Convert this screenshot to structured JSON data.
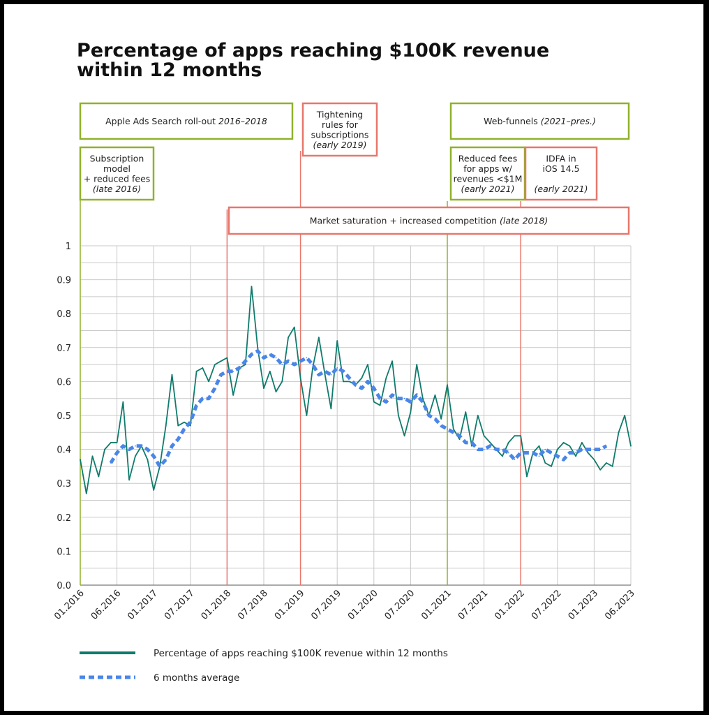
{
  "chart_data": {
    "type": "line",
    "title_line1": "Percentage of apps reaching $100K revenue",
    "title_line2": "within 12 months",
    "xlabel": "",
    "ylabel": "",
    "ylim": [
      0,
      1
    ],
    "y_ticks": [
      "0.0",
      "0.1",
      "0.2",
      "0.3",
      "0.4",
      "0.5",
      "0.6",
      "0.7",
      "0.8",
      "0.9",
      "1"
    ],
    "x_ticks": [
      "01.2016",
      "06.2016",
      "01.2017",
      "07.2017",
      "01.2018",
      "07.2018",
      "01.2019",
      "07.2019",
      "01.2020",
      "07.2020",
      "01.2021",
      "07.2021",
      "01.2022",
      "07.2022",
      "01.2023",
      "06.2023"
    ],
    "grid": true,
    "legend_position": "bottom",
    "series": [
      {
        "name": "Percentage of apps reaching $100K revenue within 12 months",
        "color": "#0f7b6c",
        "style": "solid",
        "values": [
          0.37,
          0.27,
          0.38,
          0.32,
          0.4,
          0.42,
          0.42,
          0.54,
          0.31,
          0.38,
          0.41,
          0.37,
          0.28,
          0.35,
          0.47,
          0.62,
          0.47,
          0.48,
          0.47,
          0.63,
          0.64,
          0.6,
          0.65,
          0.66,
          0.67,
          0.56,
          0.64,
          0.65,
          0.88,
          0.7,
          0.58,
          0.63,
          0.57,
          0.6,
          0.73,
          0.76,
          0.61,
          0.5,
          0.64,
          0.73,
          0.62,
          0.52,
          0.72,
          0.6,
          0.6,
          0.59,
          0.61,
          0.65,
          0.54,
          0.53,
          0.61,
          0.66,
          0.5,
          0.44,
          0.51,
          0.65,
          0.55,
          0.5,
          0.56,
          0.49,
          0.59,
          0.46,
          0.43,
          0.51,
          0.41,
          0.5,
          0.44,
          0.42,
          0.4,
          0.38,
          0.42,
          0.44,
          0.44,
          0.32,
          0.39,
          0.41,
          0.36,
          0.35,
          0.4,
          0.42,
          0.41,
          0.38,
          0.42,
          0.39,
          0.37,
          0.34,
          0.36,
          0.35,
          0.45,
          0.5,
          0.41
        ]
      },
      {
        "name": "6 months average",
        "color": "#4a86e8",
        "style": "dotted",
        "start_index": 5,
        "values": [
          0.36,
          0.39,
          0.41,
          0.4,
          0.41,
          0.41,
          0.4,
          0.38,
          0.35,
          0.37,
          0.41,
          0.43,
          0.46,
          0.48,
          0.53,
          0.55,
          0.55,
          0.58,
          0.62,
          0.63,
          0.63,
          0.64,
          0.66,
          0.68,
          0.69,
          0.67,
          0.68,
          0.67,
          0.65,
          0.66,
          0.65,
          0.66,
          0.67,
          0.65,
          0.62,
          0.63,
          0.62,
          0.64,
          0.63,
          0.61,
          0.59,
          0.58,
          0.6,
          0.58,
          0.55,
          0.54,
          0.56,
          0.55,
          0.55,
          0.54,
          0.56,
          0.54,
          0.5,
          0.49,
          0.47,
          0.46,
          0.45,
          0.44,
          0.42,
          0.42,
          0.4,
          0.4,
          0.41,
          0.4,
          0.4,
          0.39,
          0.37,
          0.39,
          0.39,
          0.39,
          0.38,
          0.4,
          0.39,
          0.38,
          0.37,
          0.39,
          0.39,
          0.4,
          0.4,
          0.4,
          0.4,
          0.41
        ]
      }
    ],
    "vertical_markers": [
      {
        "x_index": 0,
        "color": "#8fb22a"
      },
      {
        "x_index": 24,
        "color": "#e8766b"
      },
      {
        "x_index": 36,
        "color": "#e8766b"
      },
      {
        "x_index": 60,
        "color": "#8fb22a"
      },
      {
        "x_index": 72,
        "color": "#e8766b"
      }
    ],
    "annotations": [
      {
        "id": "apple-ads",
        "color": "#8fb22a",
        "lines": [
          {
            "t": "Apple Ads Search roll-out ",
            "it": "2016–2018"
          }
        ]
      },
      {
        "id": "tightening",
        "color": "#e8766b",
        "lines": [
          {
            "t": "Tightening"
          },
          {
            "t": "rules for"
          },
          {
            "t": "subscriptions"
          },
          {
            "it": "(early 2019)"
          }
        ]
      },
      {
        "id": "web-funnels",
        "color": "#8fb22a",
        "lines": [
          {
            "t": "Web-funnels ",
            "it": "(2021–pres.)"
          }
        ]
      },
      {
        "id": "subscription-model",
        "color": "#8fb22a",
        "lines": [
          {
            "t": "Subscription"
          },
          {
            "t": "model"
          },
          {
            "t": "+ reduced fees"
          },
          {
            "it": "(late 2016)"
          }
        ]
      },
      {
        "id": "reduced-fees",
        "color": "#8fb22a",
        "lines": [
          {
            "t": "Reduced fees"
          },
          {
            "t": "for apps w/"
          },
          {
            "t": "revenues <$1M"
          },
          {
            "it": "(early 2021)"
          }
        ]
      },
      {
        "id": "idfa",
        "color": "#e8766b",
        "lines": [
          {
            "t": "IDFA in"
          },
          {
            "t": "iOS 14.5"
          },
          {
            "t": ""
          },
          {
            "it": "(early 2021)"
          }
        ]
      },
      {
        "id": "market-saturation",
        "color": "#e8766b",
        "lines": [
          {
            "t": "Market saturation + increased competition ",
            "it": "(late 2018)"
          }
        ]
      }
    ]
  }
}
